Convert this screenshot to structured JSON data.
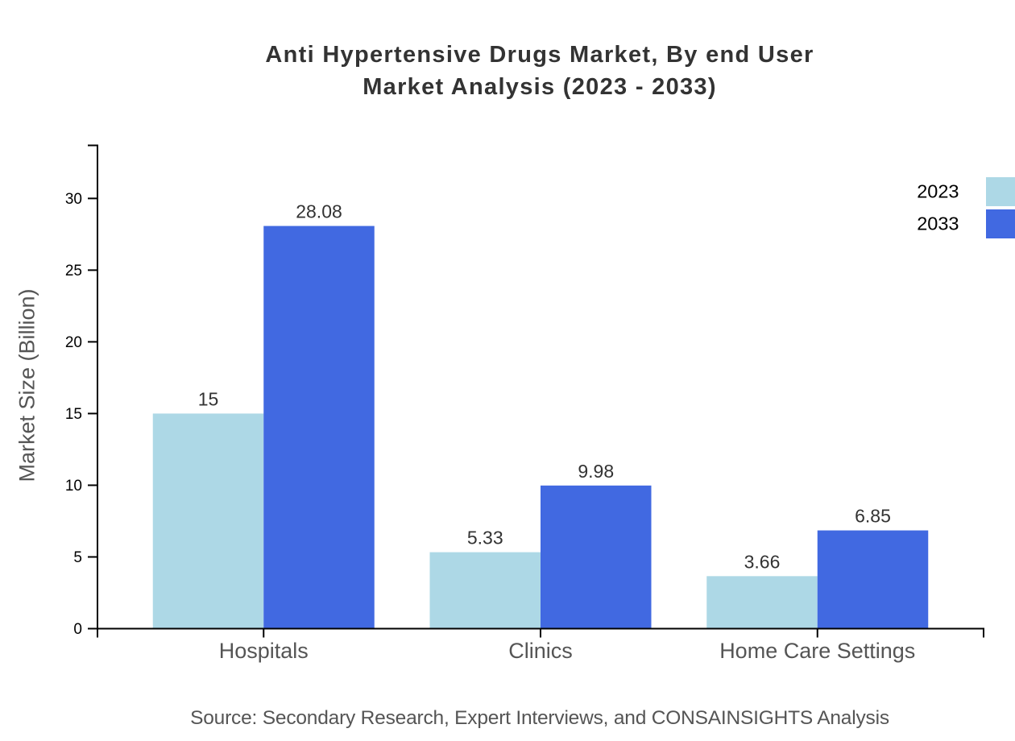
{
  "chart_data": {
    "type": "bar",
    "title_lines": [
      "Anti Hypertensive Drugs Market, By end User",
      "Market Analysis (2023 - 2033)"
    ],
    "categories": [
      "Hospitals",
      "Clinics",
      "Home Care Settings"
    ],
    "series": [
      {
        "name": "2023",
        "color": "#ADD8E6",
        "values": [
          15,
          5.33,
          3.66
        ],
        "value_labels": [
          "15",
          "5.33",
          "3.66"
        ]
      },
      {
        "name": "2033",
        "color": "#4169E1",
        "values": [
          28.08,
          9.98,
          6.85
        ],
        "value_labels": [
          "28.08",
          "9.98",
          "6.85"
        ]
      }
    ],
    "xlabel": "",
    "ylabel": "Market Size (Billion)",
    "yticks": [
      "0",
      "5",
      "10",
      "15",
      "20",
      "25",
      "30"
    ],
    "ylim": [
      0,
      33.7
    ],
    "grid": false,
    "legend_position": "top-right",
    "source": "Source: Secondary Research, Expert Interviews, and CONSAINSIGHTS Analysis"
  },
  "colors": {
    "background": "#ffffff",
    "title": "#333333",
    "tick_label": "#000000",
    "value_label": "#333333",
    "category_label": "#555555",
    "axis_title": "#555555",
    "source_note": "#555555",
    "axis_line": "#000000",
    "legend_label": "#000000"
  }
}
